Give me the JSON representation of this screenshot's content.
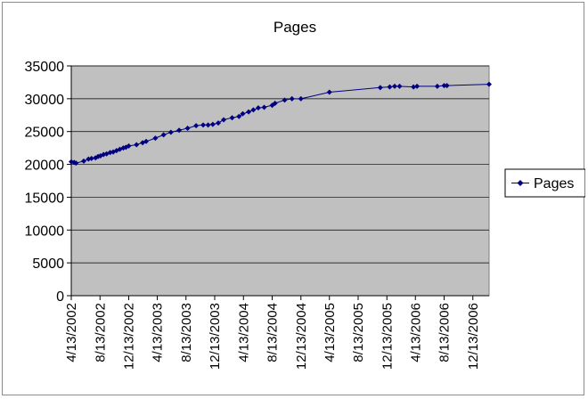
{
  "chart_data": {
    "type": "line",
    "title": "Pages",
    "xlabel": "",
    "ylabel": "",
    "ylim": [
      0,
      35000
    ],
    "yticks": [
      "0",
      "5000",
      "10000",
      "15000",
      "20000",
      "25000",
      "30000",
      "35000"
    ],
    "xlim": [
      "4/13/2002",
      "2/20/2007"
    ],
    "xticks": [
      "4/13/2002",
      "8/13/2002",
      "12/13/2002",
      "4/13/2003",
      "8/13/2003",
      "12/13/2003",
      "4/13/2004",
      "8/13/2004",
      "12/13/2004",
      "4/13/2005",
      "8/13/2005",
      "12/13/2005",
      "4/13/2006",
      "8/13/2006",
      "12/13/2006"
    ],
    "grid": true,
    "legend_position": "right",
    "colors": {
      "plot_bg": "#c0c0c0",
      "series": "#000080",
      "grid": "#000000"
    },
    "series": [
      {
        "name": "Pages",
        "x": [
          "4/13/2002",
          "4/25/2002",
          "5/3/2002",
          "6/5/2002",
          "6/25/2002",
          "7/8/2002",
          "7/25/2002",
          "8/5/2002",
          "8/15/2002",
          "8/28/2002",
          "9/10/2002",
          "9/25/2002",
          "10/8/2002",
          "10/22/2002",
          "11/5/2002",
          "11/20/2002",
          "12/1/2002",
          "12/13/2002",
          "1/15/2003",
          "2/10/2003",
          "2/25/2003",
          "4/5/2003",
          "5/10/2003",
          "6/10/2003",
          "7/15/2003",
          "8/20/2003",
          "9/25/2003",
          "10/25/2003",
          "11/15/2003",
          "12/5/2003",
          "12/28/2003",
          "1/20/2004",
          "2/25/2004",
          "3/25/2004",
          "4/10/2004",
          "5/5/2004",
          "5/25/2004",
          "6/15/2004",
          "7/10/2004",
          "8/13/2004",
          "8/25/2004",
          "10/5/2004",
          "11/5/2004",
          "12/13/2004",
          "4/13/2005",
          "11/15/2005",
          "12/25/2005",
          "1/15/2006",
          "2/5/2006",
          "4/5/2006",
          "4/20/2006",
          "7/15/2006",
          "8/13/2006",
          "8/25/2006",
          "2/20/2007"
        ],
        "values": [
          20400,
          20300,
          20200,
          20500,
          20800,
          20900,
          21000,
          21200,
          21300,
          21500,
          21600,
          21800,
          21900,
          22100,
          22300,
          22500,
          22600,
          22800,
          23000,
          23300,
          23500,
          24000,
          24500,
          24900,
          25200,
          25500,
          25900,
          26000,
          26000,
          26100,
          26300,
          26800,
          27100,
          27300,
          27700,
          28000,
          28300,
          28600,
          28700,
          29000,
          29300,
          29800,
          30000,
          30000,
          31000,
          31700,
          31800,
          31900,
          31900,
          31800,
          31900,
          31900,
          32000,
          32000,
          32200
        ]
      }
    ]
  }
}
